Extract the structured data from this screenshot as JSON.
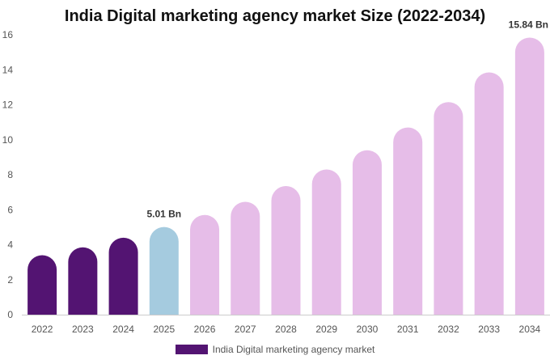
{
  "chart_data": {
    "type": "bar",
    "title": "India Digital marketing agency market Size (2022-2034)",
    "xlabel": "",
    "ylabel": "",
    "categories": [
      "2022",
      "2023",
      "2024",
      "2025",
      "2026",
      "2027",
      "2028",
      "2029",
      "2030",
      "2031",
      "2032",
      "2033",
      "2034"
    ],
    "series": [
      {
        "name": "India Digital marketing agency market",
        "values": [
          3.4,
          3.85,
          4.4,
          5.01,
          5.7,
          6.45,
          7.35,
          8.3,
          9.4,
          10.7,
          12.15,
          13.85,
          15.84
        ]
      }
    ],
    "data_labels": [
      {
        "category": "2025",
        "text": "5.01 Bn"
      },
      {
        "category": "2034",
        "text": "15.84 Bn"
      }
    ],
    "ylim": [
      0,
      16
    ],
    "yticks": [
      0,
      2,
      4,
      6,
      8,
      10,
      12,
      14,
      16
    ],
    "grid": false,
    "legend_position": "bottom",
    "colors": {
      "historical": "#531472",
      "base_year": "#a5cbdf",
      "forecast": "#e6bde8",
      "axis": "#cccccc"
    },
    "bar_color_groups": [
      "historical",
      "historical",
      "historical",
      "base_year",
      "forecast",
      "forecast",
      "forecast",
      "forecast",
      "forecast",
      "forecast",
      "forecast",
      "forecast",
      "forecast"
    ]
  }
}
